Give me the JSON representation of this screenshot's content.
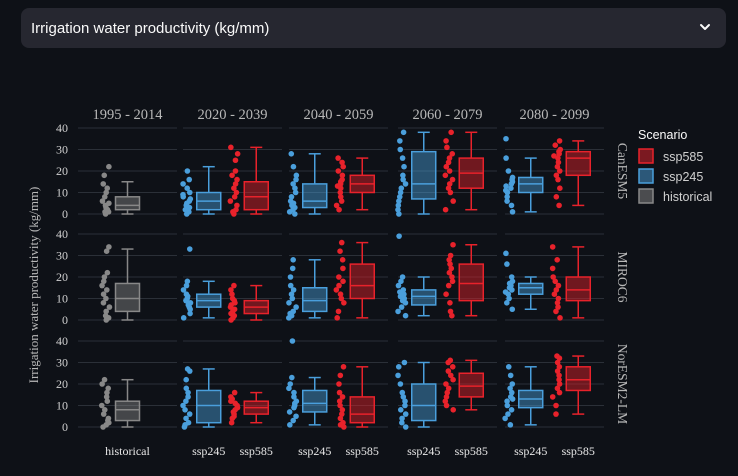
{
  "selector": {
    "label": "Irrigation water productivity (kg/mm)",
    "icon": "chevron-down-icon"
  },
  "chart_data": {
    "type": "box",
    "ylabel": "Irrigation water productivity (kg/mm)",
    "ylim": [
      0,
      40
    ],
    "yticks": [
      0,
      10,
      20,
      30,
      40
    ],
    "periods": [
      "1995 - 2014",
      "2020 - 2039",
      "2040 - 2059",
      "2060 - 2079",
      "2080 - 2099"
    ],
    "models": [
      "CanESM5",
      "MIROC6",
      "NorESM2-LM"
    ],
    "legend": {
      "title": "Scenario",
      "position": "right",
      "entries": [
        "ssp585",
        "ssp245",
        "historical"
      ]
    },
    "colors": {
      "ssp585": "#e8222b",
      "ssp245": "#4a9fdc",
      "historical": "#888888",
      "background": "#0e1117",
      "grid": "#2b3038",
      "text": "#d0d0d0"
    },
    "x_labels": [
      [
        "historical"
      ],
      [
        "ssp245",
        "ssp585"
      ],
      [
        "ssp245",
        "ssp585"
      ],
      [
        "ssp245",
        "ssp585"
      ],
      [
        "ssp245",
        "ssp585"
      ]
    ],
    "boxes": [
      {
        "model": "CanESM5",
        "period": "1995 - 2014",
        "scenario": "historical",
        "min": 0,
        "q1": 2,
        "median": 4,
        "q3": 8,
        "max": 15,
        "points": [
          0,
          1,
          1,
          2,
          3,
          4,
          5,
          6,
          8,
          10,
          12,
          14,
          18,
          22
        ]
      },
      {
        "model": "CanESM5",
        "period": "2020 - 2039",
        "scenario": "ssp245",
        "min": 0,
        "q1": 2,
        "median": 6,
        "q3": 10,
        "max": 22,
        "points": [
          0,
          1,
          2,
          3,
          4,
          5,
          6,
          7,
          8,
          9,
          10,
          12,
          14,
          16,
          20
        ]
      },
      {
        "model": "CanESM5",
        "period": "2020 - 2039",
        "scenario": "ssp585",
        "min": 0,
        "q1": 2,
        "median": 8,
        "q3": 15,
        "max": 31,
        "points": [
          0,
          1,
          2,
          4,
          6,
          8,
          10,
          12,
          14,
          16,
          18,
          20,
          25,
          28,
          31
        ]
      },
      {
        "model": "CanESM5",
        "period": "2040 - 2059",
        "scenario": "ssp245",
        "min": 0,
        "q1": 3,
        "median": 6,
        "q3": 14,
        "max": 28,
        "points": [
          0,
          1,
          2,
          3,
          4,
          5,
          6,
          8,
          10,
          12,
          14,
          16,
          18,
          22,
          28
        ]
      },
      {
        "model": "CanESM5",
        "period": "2040 - 2059",
        "scenario": "ssp585",
        "min": 2,
        "q1": 10,
        "median": 14,
        "q3": 18,
        "max": 26,
        "points": [
          2,
          4,
          6,
          8,
          10,
          12,
          13,
          14,
          15,
          16,
          18,
          20,
          22,
          24,
          26
        ]
      },
      {
        "model": "CanESM5",
        "period": "2060 - 2079",
        "scenario": "ssp245",
        "min": 0,
        "q1": 7,
        "median": 14,
        "q3": 29,
        "max": 38,
        "points": [
          0,
          2,
          4,
          6,
          8,
          10,
          12,
          14,
          16,
          18,
          22,
          26,
          30,
          34,
          38
        ]
      },
      {
        "model": "CanESM5",
        "period": "2060 - 2079",
        "scenario": "ssp585",
        "min": 2,
        "q1": 12,
        "median": 19,
        "q3": 26,
        "max": 38,
        "points": [
          2,
          6,
          10,
          12,
          14,
          16,
          18,
          20,
          22,
          24,
          26,
          28,
          31,
          34,
          38
        ]
      },
      {
        "model": "CanESM5",
        "period": "2080 - 2099",
        "scenario": "ssp245",
        "min": 1,
        "q1": 10,
        "median": 14,
        "q3": 17,
        "max": 26,
        "points": [
          1,
          4,
          6,
          8,
          10,
          11,
          12,
          13,
          14,
          15,
          16,
          17,
          20,
          26,
          35
        ]
      },
      {
        "model": "CanESM5",
        "period": "2080 - 2099",
        "scenario": "ssp585",
        "min": 4,
        "q1": 18,
        "median": 26,
        "q3": 29,
        "max": 34,
        "points": [
          4,
          8,
          12,
          16,
          18,
          20,
          22,
          24,
          26,
          27,
          28,
          29,
          30,
          32,
          34
        ]
      },
      {
        "model": "MIROC6",
        "period": "1995 - 2014",
        "scenario": "historical",
        "min": 0,
        "q1": 4,
        "median": 10,
        "q3": 17,
        "max": 33,
        "points": [
          0,
          1,
          2,
          4,
          6,
          8,
          10,
          12,
          14,
          16,
          18,
          20,
          22,
          32,
          34
        ]
      },
      {
        "model": "MIROC6",
        "period": "2020 - 2039",
        "scenario": "ssp245",
        "min": 1,
        "q1": 6,
        "median": 9,
        "q3": 12,
        "max": 18,
        "points": [
          1,
          3,
          5,
          6,
          7,
          8,
          9,
          10,
          11,
          12,
          14,
          16,
          18,
          33
        ]
      },
      {
        "model": "MIROC6",
        "period": "2020 - 2039",
        "scenario": "ssp585",
        "min": 0,
        "q1": 3,
        "median": 6,
        "q3": 9,
        "max": 16,
        "points": [
          0,
          1,
          2,
          3,
          4,
          5,
          6,
          7,
          8,
          9,
          10,
          12,
          14,
          16
        ]
      },
      {
        "model": "MIROC6",
        "period": "2040 - 2059",
        "scenario": "ssp245",
        "min": 1,
        "q1": 4,
        "median": 9,
        "q3": 15,
        "max": 28,
        "points": [
          1,
          2,
          3,
          4,
          6,
          8,
          10,
          12,
          14,
          16,
          20,
          24,
          28
        ]
      },
      {
        "model": "MIROC6",
        "period": "2040 - 2059",
        "scenario": "ssp585",
        "min": 1,
        "q1": 10,
        "median": 16,
        "q3": 26,
        "max": 36,
        "points": [
          1,
          4,
          8,
          10,
          12,
          14,
          16,
          18,
          20,
          24,
          28,
          32,
          36
        ]
      },
      {
        "model": "MIROC6",
        "period": "2060 - 2079",
        "scenario": "ssp245",
        "min": 2,
        "q1": 7,
        "median": 11,
        "q3": 14,
        "max": 20,
        "points": [
          2,
          4,
          6,
          8,
          9,
          10,
          11,
          12,
          13,
          14,
          16,
          18,
          20,
          39
        ]
      },
      {
        "model": "MIROC6",
        "period": "2060 - 2079",
        "scenario": "ssp585",
        "min": 2,
        "q1": 9,
        "median": 17,
        "q3": 26,
        "max": 35,
        "points": [
          2,
          4,
          8,
          12,
          16,
          18,
          20,
          22,
          24,
          26,
          28,
          30,
          35
        ]
      },
      {
        "model": "MIROC6",
        "period": "2080 - 2099",
        "scenario": "ssp245",
        "min": 5,
        "q1": 12,
        "median": 15,
        "q3": 17,
        "max": 20,
        "points": [
          5,
          8,
          10,
          12,
          13,
          14,
          15,
          16,
          17,
          18,
          20,
          26,
          31
        ]
      },
      {
        "model": "MIROC6",
        "period": "2080 - 2099",
        "scenario": "ssp585",
        "min": 1,
        "q1": 9,
        "median": 14,
        "q3": 20,
        "max": 34,
        "points": [
          1,
          4,
          6,
          8,
          10,
          12,
          14,
          16,
          18,
          20,
          24,
          28,
          34
        ]
      },
      {
        "model": "NorESM2-LM",
        "period": "1995 - 2014",
        "scenario": "historical",
        "min": 0,
        "q1": 3,
        "median": 8,
        "q3": 12,
        "max": 22,
        "points": [
          0,
          1,
          2,
          3,
          4,
          6,
          8,
          10,
          12,
          14,
          16,
          18,
          20,
          22
        ]
      },
      {
        "model": "NorESM2-LM",
        "period": "2020 - 2039",
        "scenario": "ssp245",
        "min": 0,
        "q1": 2,
        "median": 10,
        "q3": 17,
        "max": 27,
        "points": [
          0,
          1,
          2,
          4,
          6,
          8,
          10,
          12,
          14,
          16,
          18,
          22,
          26,
          27
        ]
      },
      {
        "model": "NorESM2-LM",
        "period": "2020 - 2039",
        "scenario": "ssp585",
        "min": 2,
        "q1": 6,
        "median": 9,
        "q3": 12,
        "max": 16,
        "points": [
          2,
          4,
          5,
          6,
          7,
          8,
          9,
          10,
          11,
          12,
          13,
          14,
          16
        ]
      },
      {
        "model": "NorESM2-LM",
        "period": "2040 - 2059",
        "scenario": "ssp245",
        "min": 1,
        "q1": 7,
        "median": 11,
        "q3": 17,
        "max": 23,
        "points": [
          1,
          3,
          5,
          7,
          9,
          10,
          11,
          12,
          14,
          16,
          18,
          20,
          23,
          40
        ]
      },
      {
        "model": "NorESM2-LM",
        "period": "2040 - 2059",
        "scenario": "ssp585",
        "min": 0,
        "q1": 2,
        "median": 6,
        "q3": 14,
        "max": 28,
        "points": [
          0,
          1,
          2,
          4,
          6,
          8,
          10,
          12,
          14,
          16,
          20,
          24,
          28
        ]
      },
      {
        "model": "NorESM2-LM",
        "period": "2060 - 2079",
        "scenario": "ssp245",
        "min": 0,
        "q1": 3,
        "median": 10,
        "q3": 20,
        "max": 30,
        "points": [
          0,
          2,
          4,
          6,
          8,
          10,
          12,
          14,
          16,
          20,
          24,
          28,
          30
        ]
      },
      {
        "model": "NorESM2-LM",
        "period": "2060 - 2079",
        "scenario": "ssp585",
        "min": 8,
        "q1": 14,
        "median": 19,
        "q3": 25,
        "max": 31,
        "points": [
          8,
          10,
          12,
          14,
          16,
          18,
          20,
          22,
          24,
          26,
          28,
          30,
          31
        ]
      },
      {
        "model": "NorESM2-LM",
        "period": "2080 - 2099",
        "scenario": "ssp245",
        "min": 1,
        "q1": 9,
        "median": 13,
        "q3": 17,
        "max": 28,
        "points": [
          1,
          4,
          6,
          8,
          10,
          12,
          13,
          14,
          16,
          18,
          20,
          24,
          28
        ]
      },
      {
        "model": "NorESM2-LM",
        "period": "2080 - 2099",
        "scenario": "ssp585",
        "min": 6,
        "q1": 17,
        "median": 22,
        "q3": 28,
        "max": 33,
        "points": [
          6,
          10,
          14,
          16,
          18,
          20,
          22,
          24,
          26,
          28,
          30,
          32,
          33
        ]
      }
    ]
  }
}
